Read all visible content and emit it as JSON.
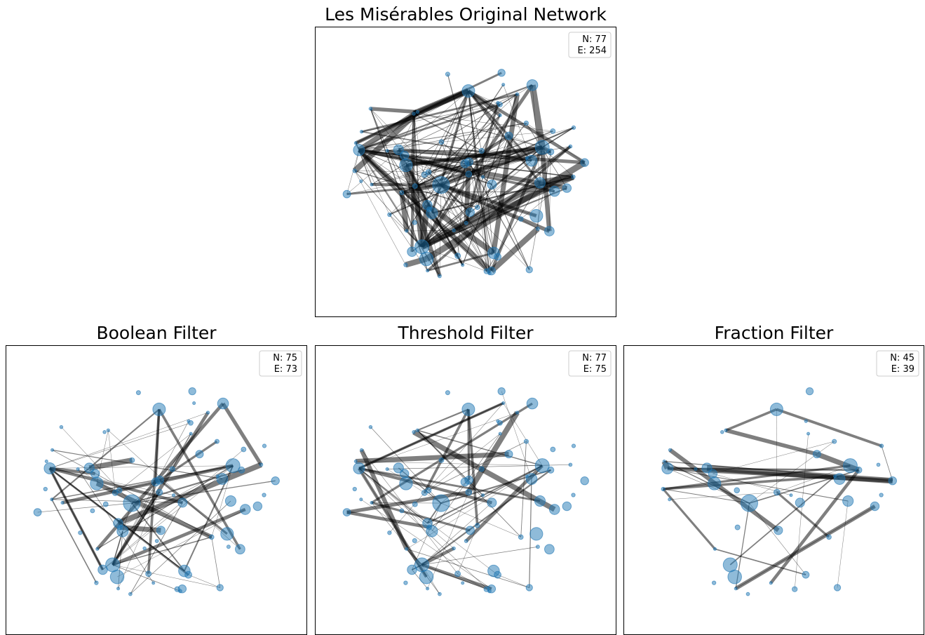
{
  "panels": [
    {
      "title": "Les Misérables Original Network",
      "stats": [
        "N: 77",
        "E: 254"
      ]
    },
    {
      "title": "Boolean Filter",
      "stats": [
        "N: 75",
        "E: 73"
      ]
    },
    {
      "title": "Threshold Filter",
      "stats": [
        "N: 77",
        "E: 75"
      ]
    },
    {
      "title": "Fraction Filter",
      "stats": [
        "N: 45",
        "E: 39"
      ]
    }
  ]
}
